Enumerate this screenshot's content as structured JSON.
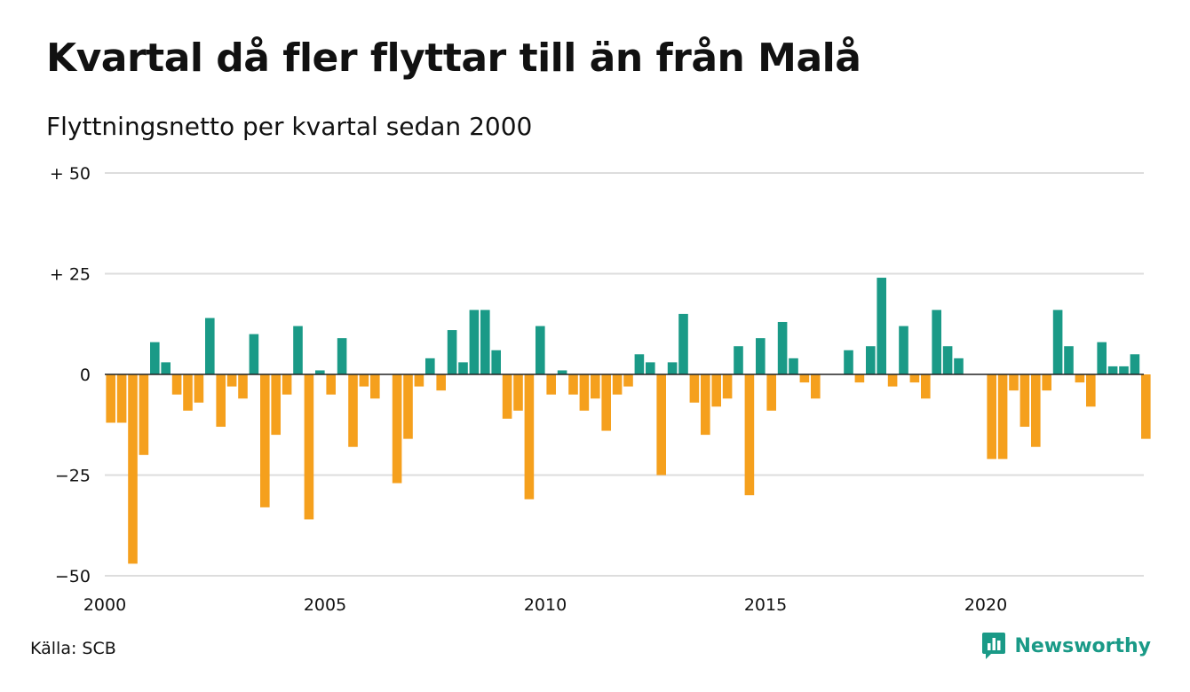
{
  "title": "Kvartal då fler flyttar till än från Malå",
  "subtitle": "Flyttningsnetto per kvartal sedan 2000",
  "source": "Källa: SCB",
  "brand": "Newsworthy",
  "colors": {
    "positive": "#1a9a87",
    "negative": "#f5a01d",
    "grid": "#dddddd",
    "zero_line": "#222222",
    "brand": "#1a9a87"
  },
  "chart_data": {
    "type": "bar",
    "title": "Kvartal då fler flyttar till än från Malå",
    "subtitle": "Flyttningsnetto per kvartal sedan 2000",
    "x_start": "2000 Q1",
    "x_tick_labels": [
      "2000",
      "2005",
      "2010",
      "2015",
      "2020"
    ],
    "y_ticks": [
      50,
      25,
      0,
      -25,
      -50
    ],
    "y_tick_labels": [
      "+ 50",
      "+ 25",
      "0",
      "−25",
      "−50"
    ],
    "ylim": [
      -50,
      50
    ],
    "grid": true,
    "values": [
      -12,
      -12,
      -47,
      -20,
      8,
      3,
      -5,
      -9,
      -7,
      14,
      -13,
      -3,
      -6,
      10,
      -33,
      -15,
      -5,
      12,
      -36,
      1,
      -5,
      9,
      -18,
      -3,
      -6,
      0,
      -27,
      -16,
      -3,
      4,
      -4,
      11,
      3,
      16,
      16,
      6,
      -11,
      -9,
      -31,
      12,
      -5,
      1,
      -5,
      -9,
      -6,
      -14,
      -5,
      -3,
      5,
      3,
      -25,
      3,
      15,
      -7,
      -15,
      -8,
      -6,
      7,
      -30,
      9,
      -9,
      13,
      4,
      -2,
      -6,
      0,
      0,
      6,
      -2,
      7,
      24,
      -3,
      12,
      -2,
      -6,
      16,
      7,
      4,
      0,
      0,
      -21,
      -21,
      -4,
      -13,
      -18,
      -4,
      16,
      7,
      -2,
      -8,
      8,
      2,
      2,
      5,
      -16
    ]
  }
}
